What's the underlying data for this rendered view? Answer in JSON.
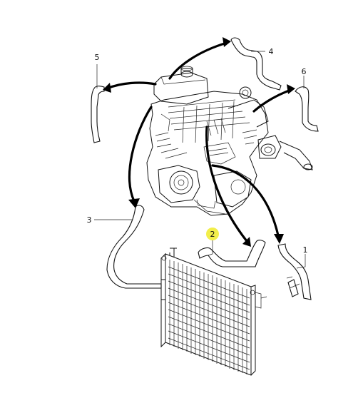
{
  "callouts": [
    {
      "id": "1",
      "label": "1"
    },
    {
      "id": "2",
      "label": "2"
    },
    {
      "id": "3",
      "label": "3"
    },
    {
      "id": "4",
      "label": "4"
    },
    {
      "id": "5",
      "label": "5"
    },
    {
      "id": "6",
      "label": "6"
    }
  ],
  "highlight_color": "#f2ee4a",
  "line_color": "#111111"
}
